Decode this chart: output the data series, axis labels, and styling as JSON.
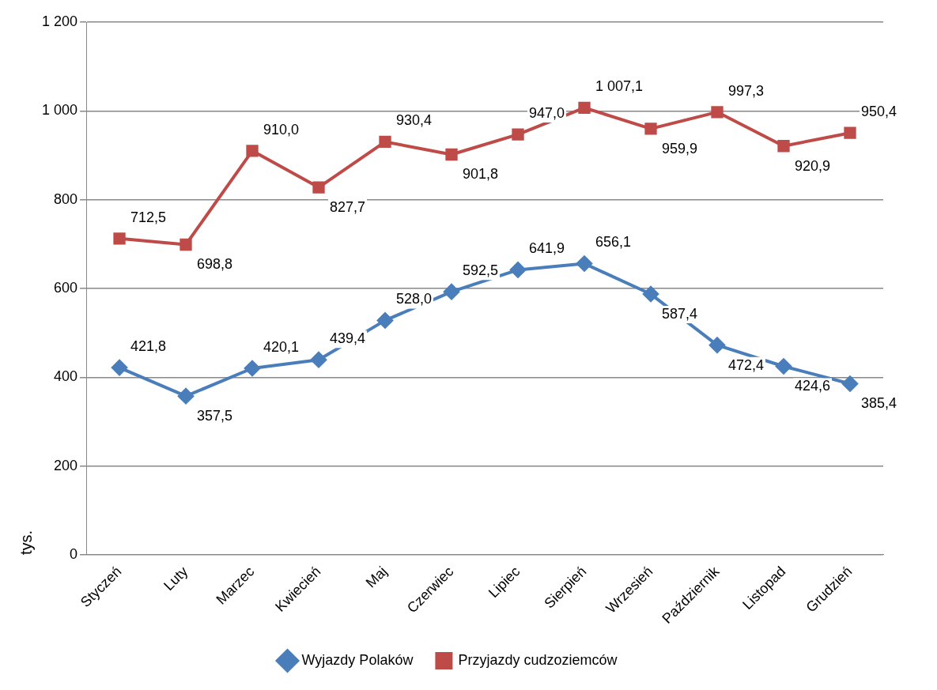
{
  "chart_data": {
    "type": "line",
    "ylabel": "tys.",
    "categories": [
      "Styczeń",
      "Luty",
      "Marzec",
      "Kwiecień",
      "Maj",
      "Czerwiec",
      "Lipiec",
      "Sierpień",
      "Wrzesień",
      "Październik",
      "Listopad",
      "Grudzień"
    ],
    "series": [
      {
        "name": "Wyjazdy Polaków",
        "color": "#4a7ebb",
        "marker": "diamond",
        "values": [
          421.8,
          357.5,
          420.1,
          439.4,
          528.0,
          592.5,
          641.9,
          656.1,
          587.4,
          472.4,
          424.6,
          385.4
        ],
        "value_labels": [
          "421,8",
          "357,5",
          "420,1",
          "439,4",
          "528,0",
          "592,5",
          "641,9",
          "656,1",
          "587,4",
          "472,4",
          "424,6",
          "385,4"
        ]
      },
      {
        "name": "Przyjazdy cudzoziemców",
        "color": "#be4b48",
        "marker": "square",
        "values": [
          712.5,
          698.8,
          910.0,
          827.7,
          930.4,
          901.8,
          947.0,
          1007.1,
          959.9,
          997.3,
          920.9,
          950.4
        ],
        "value_labels": [
          "712,5",
          "698,8",
          "910,0",
          "827,7",
          "930,4",
          "901,8",
          "947,0",
          "1 007,1",
          "959,9",
          "997,3",
          "920,9",
          "950,4"
        ]
      }
    ],
    "ylim": [
      0,
      1200
    ],
    "yticks": [
      0,
      200,
      400,
      600,
      800,
      {
        "value": 1000,
        "label": "1 000"
      },
      {
        "value": 1200,
        "label": "1 200"
      }
    ],
    "grid": "y",
    "legend": "bottom",
    "line_style": "solid"
  }
}
